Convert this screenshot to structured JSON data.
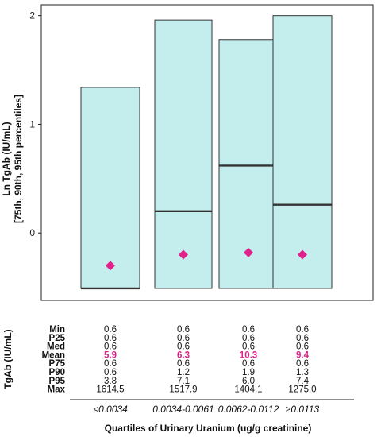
{
  "chart_data": {
    "type": "bar",
    "ylabel": "Ln TgAb (IU/mL)",
    "ylabel2": "[75th, 90th, 95th percentiles]",
    "xlabel": "Quartiles of Urinary Uranium (ug/g creatinine)",
    "ylim": [
      -0.62,
      2.1
    ],
    "yticks": [
      0,
      1,
      2
    ],
    "grid": false,
    "categories": [
      "<0.0034",
      "0.0034-0.0061",
      "0.0062-0.0112",
      "≥0.0113"
    ],
    "box_bottom": [
      -0.51,
      -0.51,
      -0.51,
      -0.51
    ],
    "box_top": [
      1.34,
      1.96,
      1.78,
      2.0
    ],
    "median_line": [
      -0.51,
      0.2,
      0.62,
      0.26
    ],
    "mean_marker": [
      -0.3,
      -0.2,
      -0.18,
      -0.2
    ],
    "colors": {
      "box_fill": "#c4eeee",
      "mean_marker": "#e0218a",
      "mean_text": "#e0218a"
    },
    "table": {
      "side_label": "TgAb (IU/mL)",
      "rows": [
        {
          "label": "Min",
          "values": [
            "0.6",
            "0.6",
            "0.6",
            "0.6"
          ]
        },
        {
          "label": "P25",
          "values": [
            "0.6",
            "0.6",
            "0.6",
            "0.6"
          ]
        },
        {
          "label": "Med",
          "values": [
            "0.6",
            "0.6",
            "0.6",
            "0.6"
          ]
        },
        {
          "label": "Mean",
          "values": [
            "5.9",
            "6.3",
            "10.3",
            "9.4"
          ]
        },
        {
          "label": "P75",
          "values": [
            "0.6",
            "0.6",
            "0.6",
            "0.6"
          ]
        },
        {
          "label": "P90",
          "values": [
            "0.6",
            "1.2",
            "1.9",
            "1.3"
          ]
        },
        {
          "label": "P95",
          "values": [
            "3.8",
            "7.1",
            "6.0",
            "7.4"
          ]
        },
        {
          "label": "Max",
          "values": [
            "1614.5",
            "1517.9",
            "1404.1",
            "1275.0"
          ]
        }
      ]
    }
  }
}
